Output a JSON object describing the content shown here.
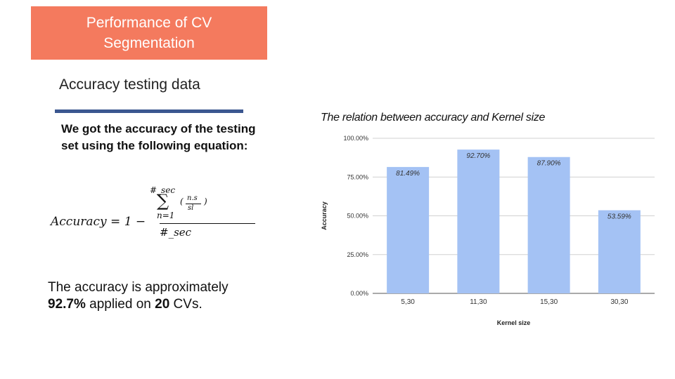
{
  "slide": {
    "title_line1": "Performance of CV",
    "title_line2": "Segmentation",
    "subtitle": "Accuracy testing data",
    "description": "We got the accuracy of the testing set using the following equation:",
    "equation": {
      "lhs": "Accuracy = 1 −",
      "sup": "#_sec",
      "sum": "∑",
      "sub": "n=1",
      "open_paren": "(",
      "inner_num": "n.s",
      "inner_den": "sl",
      "close_paren": ")",
      "den": "#_sec"
    },
    "summary_pre": "The accuracy is approximately",
    "summary_value": "92.7%",
    "summary_mid": " applied on ",
    "summary_count": "20",
    "summary_post": " CVs."
  },
  "colors": {
    "title_bg": "#f47a5e",
    "rule": "#3b5790",
    "bar": "#a4c2f4",
    "grid": "#d0d0d0"
  },
  "chart_data": {
    "type": "bar",
    "title": "The relation between accuracy and Kernel size",
    "xlabel": "Kernel size",
    "ylabel": "Accuracy",
    "categories": [
      "5,30",
      "11,30",
      "15,30",
      "30,30"
    ],
    "values": [
      81.49,
      92.7,
      87.9,
      53.59
    ],
    "value_labels": [
      "81.49%",
      "92.70%",
      "87.90%",
      "53.59%"
    ],
    "yticks": [
      0,
      25,
      50,
      75,
      100
    ],
    "ytick_labels": [
      "0.00%",
      "25.00%",
      "50.00%",
      "75.00%",
      "100.00%"
    ],
    "ylim": [
      0,
      100
    ],
    "grid": true,
    "legend": "none"
  }
}
